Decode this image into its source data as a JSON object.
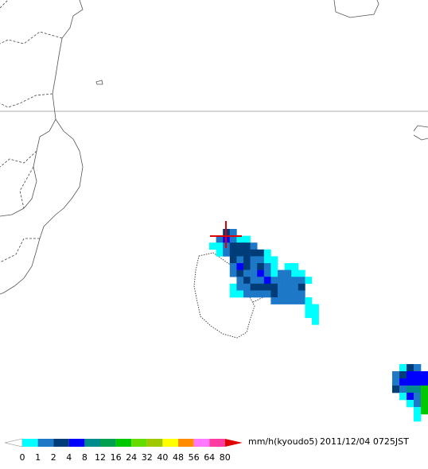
{
  "legend": {
    "labels": [
      "0",
      "1",
      "2",
      "4",
      "8",
      "12",
      "16",
      "24",
      "32",
      "40",
      "48",
      "56",
      "64",
      "80"
    ],
    "colors": [
      "#00ffff",
      "#1e78c8",
      "#003c78",
      "#0000ff",
      "#008c8c",
      "#00a050",
      "#00c800",
      "#64dc00",
      "#a0c800",
      "#ffff00",
      "#ff8c00",
      "#ff78ff",
      "#ff3ca0"
    ],
    "over_color": "#e00000",
    "unit": "mm/h(kyoudo5)",
    "timestamp": "2011/12/04 0725JST"
  }
}
